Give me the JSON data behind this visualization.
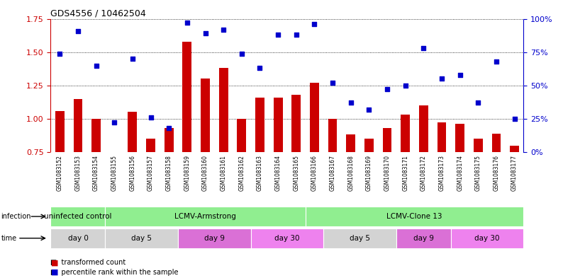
{
  "title": "GDS4556 / 10462504",
  "samples": [
    "GSM1083152",
    "GSM1083153",
    "GSM1083154",
    "GSM1083155",
    "GSM1083156",
    "GSM1083157",
    "GSM1083158",
    "GSM1083159",
    "GSM1083160",
    "GSM1083161",
    "GSM1083162",
    "GSM1083163",
    "GSM1083164",
    "GSM1083165",
    "GSM1083166",
    "GSM1083167",
    "GSM1083168",
    "GSM1083169",
    "GSM1083170",
    "GSM1083171",
    "GSM1083172",
    "GSM1083173",
    "GSM1083174",
    "GSM1083175",
    "GSM1083176",
    "GSM1083177"
  ],
  "bar_values": [
    1.06,
    1.15,
    1.0,
    0.75,
    1.05,
    0.85,
    0.93,
    1.58,
    1.3,
    1.38,
    1.0,
    1.16,
    1.16,
    1.18,
    1.27,
    1.0,
    0.88,
    0.85,
    0.93,
    1.03,
    1.1,
    0.97,
    0.96,
    0.85,
    0.89,
    0.8
  ],
  "dot_values": [
    74,
    91,
    65,
    22,
    70,
    26,
    18,
    97,
    89,
    92,
    74,
    63,
    88,
    88,
    96,
    52,
    37,
    32,
    47,
    50,
    78,
    55,
    58,
    37,
    68,
    25
  ],
  "ylim_left": [
    0.75,
    1.75
  ],
  "ylim_right": [
    0,
    100
  ],
  "yticks_left": [
    0.75,
    1.0,
    1.25,
    1.5,
    1.75
  ],
  "yticks_right": [
    0,
    25,
    50,
    75,
    100
  ],
  "bar_color": "#cc0000",
  "dot_color": "#0000cc",
  "bg_color": "#ffffff",
  "inf_groups": [
    {
      "label": "uninfected control",
      "start": 0,
      "end": 3
    },
    {
      "label": "LCMV-Armstrong",
      "start": 3,
      "end": 14
    },
    {
      "label": "LCMV-Clone 13",
      "start": 14,
      "end": 26
    }
  ],
  "time_groups": [
    {
      "label": "day 0",
      "start": 0,
      "end": 3,
      "color": "#d3d3d3"
    },
    {
      "label": "day 5",
      "start": 3,
      "end": 7,
      "color": "#d3d3d3"
    },
    {
      "label": "day 9",
      "start": 7,
      "end": 11,
      "color": "#da70d6"
    },
    {
      "label": "day 30",
      "start": 11,
      "end": 15,
      "color": "#ee82ee"
    },
    {
      "label": "day 5",
      "start": 15,
      "end": 19,
      "color": "#d3d3d3"
    },
    {
      "label": "day 9",
      "start": 19,
      "end": 22,
      "color": "#da70d6"
    },
    {
      "label": "day 30",
      "start": 22,
      "end": 26,
      "color": "#ee82ee"
    }
  ]
}
